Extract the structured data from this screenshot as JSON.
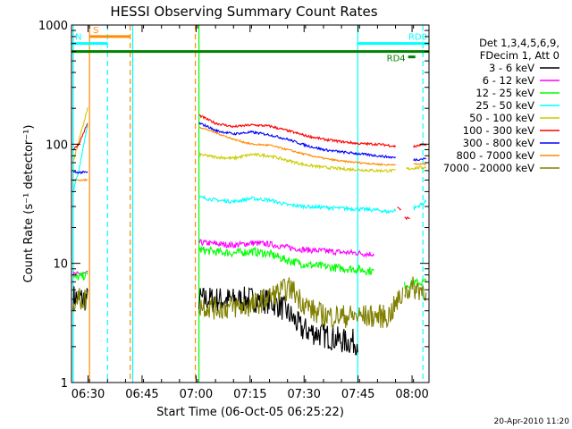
{
  "chart_data": {
    "type": "line",
    "title": "HESSI Observing Summary Count Rates",
    "xlabel": "Start Time (06-Oct-05 06:25:22)",
    "ylabel": "Count Rate (s⁻¹ detector⁻¹)",
    "x_unit": "minutes after 06:25:22",
    "xlim": [
      0,
      99.3
    ],
    "ylim": [
      1,
      1000
    ],
    "y_scale": "log",
    "x_ticks": [
      {
        "label": "06:30",
        "x": 4.6
      },
      {
        "label": "06:45",
        "x": 19.6
      },
      {
        "label": "07:00",
        "x": 34.6
      },
      {
        "label": "07:15",
        "x": 49.6
      },
      {
        "label": "07:30",
        "x": 64.6
      },
      {
        "label": "07:45",
        "x": 79.6
      },
      {
        "label": "08:00",
        "x": 94.6
      }
    ],
    "y_ticks": [
      {
        "label": "1",
        "y": 1
      },
      {
        "label": "10",
        "y": 10
      },
      {
        "label": "100",
        "y": 100
      },
      {
        "label": "1000",
        "y": 1000
      }
    ],
    "grid": false,
    "legend_position": "right",
    "legend_header": [
      "Det 1,3,4,5,6,9,",
      "FDecim 1, Att 0"
    ],
    "series": [
      {
        "name": "3 - 6 keV",
        "color": "#000000",
        "noise": 0.22,
        "segments": [
          {
            "x": [
              0.5,
              4.5
            ],
            "y": [
              5.2,
              5.0
            ]
          },
          {
            "x": [
              35.4,
              40,
              45,
              50,
              55,
              58,
              61,
              64,
              68,
              72,
              76,
              79.5
            ],
            "y": [
              5.0,
              5.0,
              4.9,
              5.0,
              4.8,
              4.4,
              3.6,
              2.8,
              2.6,
              2.4,
              2.2,
              2.2
            ]
          }
        ]
      },
      {
        "name": "6 - 12 keV",
        "color": "#ff00ff",
        "noise": 0.05,
        "segments": [
          {
            "x": [
              0.5,
              4.5
            ],
            "y": [
              8.0,
              8.2
            ]
          },
          {
            "x": [
              35.4,
              40,
              45,
              50,
              55,
              60,
              65,
              70,
              75,
              80,
              82,
              84
            ],
            "y": [
              15,
              14.6,
              14.2,
              14.8,
              14.5,
              13.6,
              13.0,
              12.7,
              12.4,
              12.2,
              12.0,
              12.0
            ]
          }
        ]
      },
      {
        "name": "12 - 25 keV",
        "color": "#00ff00",
        "noise": 0.07,
        "segments": [
          {
            "x": [
              0.5,
              4.5
            ],
            "y": [
              7.5,
              8.0
            ]
          },
          {
            "x": [
              35.4,
              40,
              45,
              50,
              55,
              60,
              65,
              70,
              75,
              80,
              82,
              84
            ],
            "y": [
              13.0,
              12.5,
              12.2,
              12.6,
              12.0,
              10.6,
              9.8,
              9.4,
              9.1,
              8.9,
              8.7,
              8.6
            ]
          },
          {
            "x": [
              92.5,
              95,
              98.5
            ],
            "y": [
              6.5,
              6.8,
              7.0
            ]
          }
        ]
      },
      {
        "name": "25 - 50 keV",
        "color": "#00ffff",
        "noise": 0.03,
        "segments": [
          {
            "x": [
              0.5,
              2,
              4.5
            ],
            "y": [
              40,
              60,
              150
            ]
          },
          {
            "x": [
              35.4,
              40,
              45,
              50,
              55,
              60,
              65,
              70,
              75,
              80,
              85,
              88,
              90
            ],
            "y": [
              36,
              34,
              33,
              35,
              34,
              31,
              30,
              29.5,
              29,
              28.5,
              28,
              27,
              28
            ]
          },
          {
            "x": [
              95,
              97,
              98.5
            ],
            "y": [
              29,
              31,
              33
            ]
          }
        ]
      },
      {
        "name": "50 - 100 keV",
        "color": "#cccc00",
        "noise": 0.025,
        "segments": [
          {
            "x": [
              0.5,
              4.5
            ],
            "y": [
              72,
              200
            ]
          },
          {
            "x": [
              35.4,
              40,
              45,
              50,
              55,
              60,
              65,
              70,
              75,
              80,
              85,
              90
            ],
            "y": [
              82,
              78,
              76,
              82,
              80,
              73,
              67,
              64,
              62,
              61,
              60,
              60
            ]
          },
          {
            "x": [
              93,
              95,
              98.5
            ],
            "y": [
              62,
              63,
              64
            ]
          }
        ]
      },
      {
        "name": "100 - 300 keV",
        "color": "#ff0000",
        "noise": 0.02,
        "segments": [
          {
            "x": [
              0.5,
              2,
              4.5
            ],
            "y": [
              90,
              100,
              150
            ]
          },
          {
            "x": [
              35.4,
              38,
              40,
              45,
              50,
              55,
              60,
              65,
              70,
              75,
              80,
              85,
              88,
              90
            ],
            "y": [
              175,
              160,
              150,
              140,
              145,
              142,
              130,
              118,
              110,
              105,
              101,
              100,
              98,
              96
            ]
          },
          {
            "x": [
              90.5,
              91.5
            ],
            "y": [
              30,
              28
            ]
          },
          {
            "x": [
              92.5,
              94
            ],
            "y": [
              24,
              24
            ]
          },
          {
            "x": [
              95,
              97,
              98.5
            ],
            "y": [
              95,
              98,
              100
            ]
          }
        ]
      },
      {
        "name": "300 - 800 keV",
        "color": "#0000ff",
        "noise": 0.02,
        "segments": [
          {
            "x": [
              0.5,
              2,
              4.5
            ],
            "y": [
              58,
              58,
              58
            ]
          },
          {
            "x": [
              35.4,
              38,
              40,
              45,
              50,
              55,
              60,
              65,
              70,
              75,
              80,
              85,
              90
            ],
            "y": [
              150,
              140,
              130,
              122,
              126,
              120,
              110,
              98,
              90,
              86,
              83,
              80,
              77
            ]
          },
          {
            "x": [
              95,
              97,
              98.5
            ],
            "y": [
              74,
              75,
              76
            ]
          }
        ]
      },
      {
        "name": "800 - 7000 keV",
        "color": "#ff8c00",
        "noise": 0.015,
        "segments": [
          {
            "x": [
              0.5,
              2,
              4.5
            ],
            "y": [
              50,
              50,
              50
            ]
          },
          {
            "x": [
              35.4,
              40,
              45,
              50,
              55,
              60,
              65,
              70,
              75,
              80,
              85,
              88,
              90
            ],
            "y": [
              140,
              125,
              110,
              100,
              98,
              90,
              82,
              76,
              72,
              70,
              68,
              67,
              68
            ]
          },
          {
            "x": [
              95,
              97,
              98.5
            ],
            "y": [
              68,
              68,
              68
            ]
          }
        ]
      },
      {
        "name": "7000 - 20000 keV",
        "color": "#808000",
        "noise": 0.2,
        "segments": [
          {
            "x": [
              0.5,
              4.5
            ],
            "y": [
              5.0,
              5.0
            ]
          },
          {
            "x": [
              35.4,
              40,
              45,
              50,
              55,
              58,
              61,
              64,
              68,
              72,
              76,
              79.5,
              84,
              88,
              92
            ],
            "y": [
              4.5,
              4.2,
              4.3,
              4.4,
              5.2,
              5.8,
              6.2,
              4.8,
              3.8,
              3.6,
              3.6,
              3.6,
              3.6,
              3.6,
              5.5
            ]
          },
          {
            "x": [
              92.5,
              95,
              98.5
            ],
            "y": [
              6.0,
              6.2,
              6.0
            ]
          }
        ]
      }
    ],
    "vertical_lines": [
      {
        "x": 0.5,
        "color": "#00ffff",
        "dash": false
      },
      {
        "x": 5.0,
        "color": "#ff8c00",
        "dash": false
      },
      {
        "x": 10.0,
        "color": "#00ffff",
        "dash": true
      },
      {
        "x": 16.3,
        "color": "#ff8c00",
        "dash": true
      },
      {
        "x": 17.0,
        "color": "#00ffff",
        "dash": false
      },
      {
        "x": 34.4,
        "color": "#ff8c00",
        "dash": true
      },
      {
        "x": 35.4,
        "color": "#00ff00",
        "dash": false
      },
      {
        "x": 79.5,
        "color": "#00ffff",
        "dash": false
      },
      {
        "x": 97.6,
        "color": "#00ffff",
        "dash": true
      }
    ],
    "bands": [
      {
        "label": "S",
        "color": "#ff8c00",
        "x": [
          5.0,
          16.3
        ],
        "y": 800
      },
      {
        "label": "N",
        "color": "#00ffff",
        "x": [
          -5,
          10.0
        ],
        "y": 700
      },
      {
        "label": "RD0",
        "color": "#00ffff",
        "x": [
          79.5,
          99.3
        ],
        "y": 700
      },
      {
        "label": "",
        "color": "#008000",
        "x": [
          -5,
          99.3
        ],
        "y": 600
      },
      {
        "label": "RD4",
        "color": "#008000",
        "x": [
          93.5,
          95.5
        ],
        "y": 540
      }
    ]
  },
  "footer_date": "20-Apr-2010 11:20"
}
